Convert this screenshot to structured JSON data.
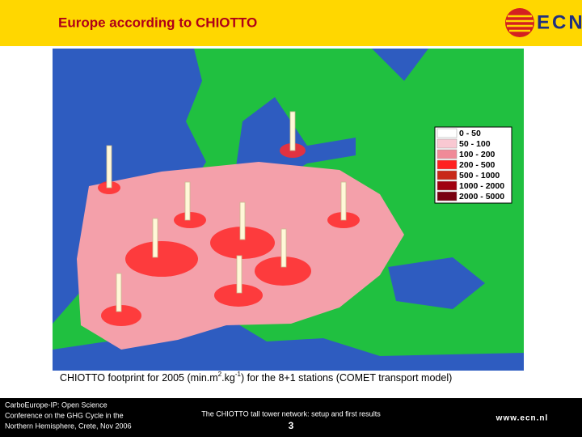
{
  "header": {
    "title": "Europe according to CHIOTTO",
    "logo": "ECN"
  },
  "legend": [
    {
      "label": "0 - 50",
      "color": "#ffffff"
    },
    {
      "label": "50 - 100",
      "color": "#f9c8d2"
    },
    {
      "label": "100 - 200",
      "color": "#f08a98"
    },
    {
      "label": "200 - 500",
      "color": "#ff2020"
    },
    {
      "label": "500 - 1000",
      "color": "#c82818"
    },
    {
      "label": "1000 - 2000",
      "color": "#a00010"
    },
    {
      "label": "2000 - 5000",
      "color": "#780010"
    }
  ],
  "caption": {
    "text_1": "CHIOTTO footprint for 2005 (min.m",
    "sup_1": "2",
    "text_2": ".kg",
    "sup_2": "-1",
    "text_3": ") for the 8+1 stations (COMET transport model)"
  },
  "footer": {
    "left": [
      "CarboEurope-IP: Open Science",
      "Conference on the GHG Cycle in the",
      "Northern Hemisphere, Crete, Nov 2006"
    ],
    "center": "The CHIOTTO tall tower network: setup and first results",
    "page": "3",
    "url": "www.ecn.nl"
  }
}
